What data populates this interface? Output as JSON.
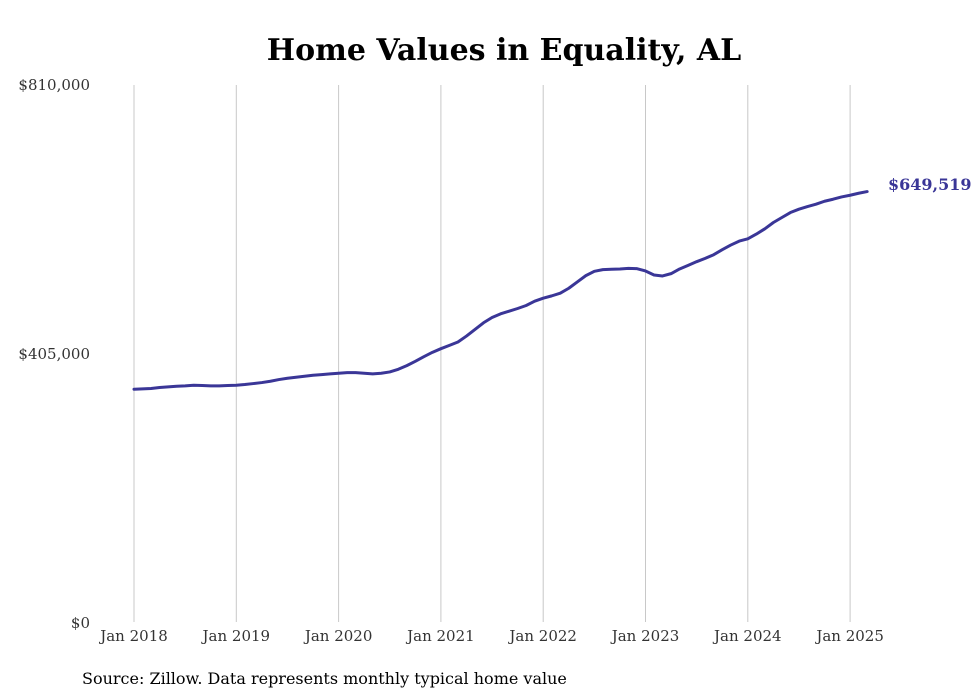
{
  "chart_data": {
    "type": "line",
    "title": "Home Values in Equality, AL",
    "source": "Source: Zillow. Data represents monthly typical home value",
    "y_ticks": [
      {
        "value": 0,
        "label": "$0"
      },
      {
        "value": 405000,
        "label": "$405,000"
      },
      {
        "value": 810000,
        "label": "$810,000"
      }
    ],
    "x_ticks": [
      {
        "value": "2018-01",
        "label": "Jan 2018"
      },
      {
        "value": "2019-01",
        "label": "Jan 2019"
      },
      {
        "value": "2020-01",
        "label": "Jan 2020"
      },
      {
        "value": "2021-01",
        "label": "Jan 2021"
      },
      {
        "value": "2022-01",
        "label": "Jan 2022"
      },
      {
        "value": "2023-01",
        "label": "Jan 2023"
      },
      {
        "value": "2024-01",
        "label": "Jan 2024"
      },
      {
        "value": "2025-01",
        "label": "Jan 2025"
      }
    ],
    "ylim": [
      0,
      810000
    ],
    "grid": "vertical",
    "end_label": "$649,519",
    "line_color": "#3a3697",
    "series": [
      {
        "points": [
          [
            "2018-01",
            352000
          ],
          [
            "2018-02",
            352500
          ],
          [
            "2018-03",
            353000
          ],
          [
            "2018-04",
            354500
          ],
          [
            "2018-05",
            355500
          ],
          [
            "2018-06",
            356500
          ],
          [
            "2018-07",
            357000
          ],
          [
            "2018-08",
            358000
          ],
          [
            "2018-09",
            357500
          ],
          [
            "2018-10",
            357000
          ],
          [
            "2018-11",
            357000
          ],
          [
            "2018-12",
            357500
          ],
          [
            "2019-01",
            358000
          ],
          [
            "2019-02",
            359000
          ],
          [
            "2019-03",
            360500
          ],
          [
            "2019-04",
            362000
          ],
          [
            "2019-05",
            364000
          ],
          [
            "2019-06",
            366500
          ],
          [
            "2019-07",
            368500
          ],
          [
            "2019-08",
            370000
          ],
          [
            "2019-09",
            371500
          ],
          [
            "2019-10",
            373000
          ],
          [
            "2019-11",
            374000
          ],
          [
            "2019-12",
            375000
          ],
          [
            "2020-01",
            376000
          ],
          [
            "2020-02",
            377000
          ],
          [
            "2020-03",
            377000
          ],
          [
            "2020-04",
            376000
          ],
          [
            "2020-05",
            375000
          ],
          [
            "2020-06",
            376000
          ],
          [
            "2020-07",
            378000
          ],
          [
            "2020-08",
            382000
          ],
          [
            "2020-09",
            387500
          ],
          [
            "2020-10",
            394000
          ],
          [
            "2020-11",
            401000
          ],
          [
            "2020-12",
            407500
          ],
          [
            "2021-01",
            413000
          ],
          [
            "2021-02",
            418000
          ],
          [
            "2021-03",
            423000
          ],
          [
            "2021-04",
            432000
          ],
          [
            "2021-05",
            442000
          ],
          [
            "2021-06",
            452000
          ],
          [
            "2021-07",
            460000
          ],
          [
            "2021-08",
            465500
          ],
          [
            "2021-09",
            469500
          ],
          [
            "2021-10",
            473500
          ],
          [
            "2021-11",
            478000
          ],
          [
            "2021-12",
            484500
          ],
          [
            "2022-01",
            489000
          ],
          [
            "2022-02",
            492500
          ],
          [
            "2022-03",
            496500
          ],
          [
            "2022-04",
            504000
          ],
          [
            "2022-05",
            513500
          ],
          [
            "2022-06",
            523000
          ],
          [
            "2022-07",
            529500
          ],
          [
            "2022-08",
            532000
          ],
          [
            "2022-09",
            532500
          ],
          [
            "2022-10",
            533000
          ],
          [
            "2022-11",
            534000
          ],
          [
            "2022-12",
            533500
          ],
          [
            "2023-01",
            530000
          ],
          [
            "2023-02",
            524000
          ],
          [
            "2023-03",
            522500
          ],
          [
            "2023-04",
            526000
          ],
          [
            "2023-05",
            533000
          ],
          [
            "2023-06",
            538500
          ],
          [
            "2023-07",
            544000
          ],
          [
            "2023-08",
            549000
          ],
          [
            "2023-09",
            554500
          ],
          [
            "2023-10",
            562000
          ],
          [
            "2023-11",
            569000
          ],
          [
            "2023-12",
            575000
          ],
          [
            "2024-01",
            578500
          ],
          [
            "2024-02",
            585500
          ],
          [
            "2024-03",
            593500
          ],
          [
            "2024-04",
            603000
          ],
          [
            "2024-05",
            610500
          ],
          [
            "2024-06",
            618000
          ],
          [
            "2024-07",
            623000
          ],
          [
            "2024-08",
            627000
          ],
          [
            "2024-09",
            630500
          ],
          [
            "2024-10",
            635000
          ],
          [
            "2024-11",
            638000
          ],
          [
            "2024-12",
            641500
          ],
          [
            "2025-01",
            644000
          ],
          [
            "2025-02",
            647000
          ],
          [
            "2025-03",
            649519
          ]
        ]
      }
    ]
  }
}
